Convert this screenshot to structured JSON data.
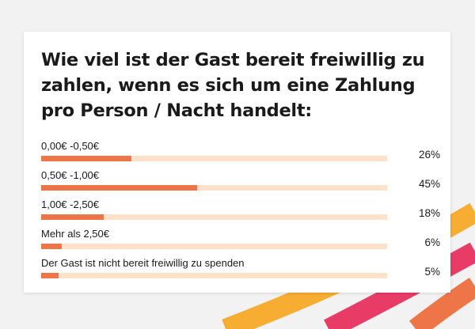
{
  "colors": {
    "bar_fill": "#ee7547",
    "bar_track": "#fde1c8",
    "card_background": "#ffffff",
    "page_background": "#f2f2f2",
    "arc_yellow": "#f6ad31",
    "arc_pink": "#e83c66",
    "arc_orange": "#ee7547"
  },
  "chart_data": {
    "type": "bar",
    "orientation": "horizontal",
    "title": "Wie viel ist der Gast bereit freiwillig zu zahlen, wenn es sich um eine Zahlung pro Person / Nacht handelt:",
    "categories": [
      "0,00€ -0,50€",
      "0,50€ -1,00€",
      "1,00€ -2,50€",
      "Mehr als 2,50€",
      "Der Gast ist nicht bereit freiwillig zu spenden"
    ],
    "values": [
      26,
      45,
      18,
      6,
      5
    ],
    "value_labels": [
      "26%",
      "45%",
      "18%",
      "6%",
      "5%"
    ],
    "unit": "%",
    "xlim": [
      0,
      100
    ],
    "grid": false,
    "legend": "none"
  }
}
